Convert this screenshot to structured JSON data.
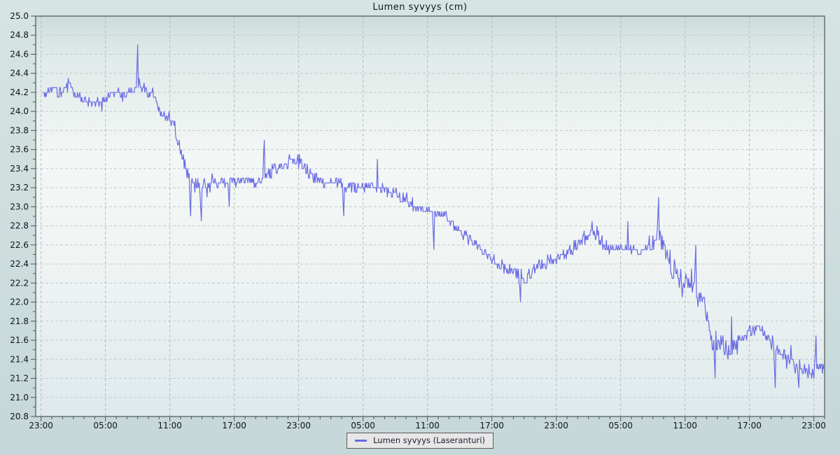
{
  "header": {
    "title": "Lumen syvyys (cm)"
  },
  "legend": {
    "label": "Lumen syvyys (Laseranturi)"
  },
  "colors": {
    "line": "#696be4",
    "grid_horizontal": "#c3cccb",
    "grid_vertical": "#b3bebe",
    "spine": "#4c545a",
    "text": "#101418",
    "title_text": "#101820",
    "legend_background": "#e7e7e7",
    "legend_border": "#5a5a5a",
    "legend_text": "#1c1c30",
    "page_gradient": [
      "#d6e4e2",
      "#c5d7d9"
    ],
    "plot_gradient": [
      [
        0,
        "#cddddb"
      ],
      [
        0.1,
        "#e0eae8"
      ],
      [
        0.35,
        "#f3f7f6"
      ],
      [
        0.6,
        "#f0f4f3"
      ],
      [
        1,
        "#dfe9ec"
      ]
    ]
  },
  "chart_data": {
    "type": "line",
    "title": "Lumen syvyys (cm)",
    "xlabel": "",
    "ylabel": "",
    "grid": true,
    "legend_position": "bottom-center",
    "ylim": [
      20.8,
      25.0
    ],
    "y_tick_step": 0.2,
    "y_minor_step": 0.1,
    "y_tick_labels": [
      "20.8",
      "21.0",
      "21.2",
      "21.4",
      "21.6",
      "21.8",
      "22.0",
      "22.2",
      "22.4",
      "22.6",
      "22.8",
      "23.0",
      "23.2",
      "23.4",
      "23.6",
      "23.8",
      "24.0",
      "24.2",
      "24.4",
      "24.6",
      "24.8",
      "25.0"
    ],
    "x_domain_hours": [
      -0.5,
      73
    ],
    "sample_range_hours": [
      0.2,
      72.9
    ],
    "x_minor_interval_hours": 1,
    "x_major_interval_hours": 6,
    "x_ticks": [
      {
        "t": 0,
        "label": "23:00"
      },
      {
        "t": 6,
        "label": "05:00"
      },
      {
        "t": 12,
        "label": "11:00"
      },
      {
        "t": 18,
        "label": "17:00"
      },
      {
        "t": 24,
        "label": "23:00"
      },
      {
        "t": 30,
        "label": "05:00"
      },
      {
        "t": 36,
        "label": "11:00"
      },
      {
        "t": 42,
        "label": "17:00"
      },
      {
        "t": 48,
        "label": "23:00"
      },
      {
        "t": 54,
        "label": "05:00"
      },
      {
        "t": 60,
        "label": "11:00"
      },
      {
        "t": 66,
        "label": "17:00"
      },
      {
        "t": 72,
        "label": "23:00"
      }
    ],
    "samples_per_hour": 15,
    "noise": {
      "base_amplitude": 0.075,
      "quantize": 0.05,
      "windows": [
        [
          8,
          10.5,
          0.095
        ],
        [
          12.5,
          16,
          0.115
        ],
        [
          20.5,
          24.5,
          0.1
        ],
        [
          33,
          38,
          0.09
        ],
        [
          44,
          46.5,
          0.115
        ],
        [
          49.5,
          53,
          0.1
        ],
        [
          56.5,
          58.5,
          0.125
        ],
        [
          58.5,
          64.5,
          0.175
        ],
        [
          64.5,
          68,
          0.105
        ],
        [
          68,
          73,
          0.095
        ]
      ],
      "spikes": [
        [
          9,
          24.7
        ],
        [
          13.9,
          22.92
        ],
        [
          14.9,
          22.85
        ],
        [
          17.5,
          23.02
        ],
        [
          20.8,
          23.68
        ],
        [
          28.2,
          22.88
        ],
        [
          36.6,
          22.55
        ],
        [
          44.7,
          22.02
        ],
        [
          57.55,
          23.08
        ],
        [
          61,
          22.62
        ],
        [
          62.8,
          21.18
        ],
        [
          68.4,
          21.08
        ],
        [
          70.6,
          21.1
        ],
        [
          72.2,
          21.64
        ]
      ]
    },
    "series": [
      {
        "name": "Lumen syvyys (Laseranturi)",
        "unit": "cm",
        "trend": [
          [
            0.2,
            24.18
          ],
          [
            1,
            24.22
          ],
          [
            2,
            24.22
          ],
          [
            2.6,
            24.28
          ],
          [
            3.2,
            24.15
          ],
          [
            4,
            24.1
          ],
          [
            4.8,
            24.12
          ],
          [
            5.4,
            24.08
          ],
          [
            6.2,
            24.15
          ],
          [
            7,
            24.22
          ],
          [
            7.6,
            24.18
          ],
          [
            8.4,
            24.2
          ],
          [
            9.2,
            24.28
          ],
          [
            10,
            24.22
          ],
          [
            10.6,
            24.12
          ],
          [
            11.2,
            24.0
          ],
          [
            11.8,
            23.94
          ],
          [
            12.4,
            23.86
          ],
          [
            13,
            23.62
          ],
          [
            13.6,
            23.38
          ],
          [
            14.2,
            23.22
          ],
          [
            15,
            23.2
          ],
          [
            16,
            23.25
          ],
          [
            17,
            23.28
          ],
          [
            18,
            23.24
          ],
          [
            19,
            23.28
          ],
          [
            20,
            23.26
          ],
          [
            21,
            23.32
          ],
          [
            21.8,
            23.38
          ],
          [
            22.6,
            23.44
          ],
          [
            23.4,
            23.5
          ],
          [
            24,
            23.47
          ],
          [
            24.6,
            23.4
          ],
          [
            25.4,
            23.3
          ],
          [
            26.4,
            23.24
          ],
          [
            27.4,
            23.26
          ],
          [
            28.4,
            23.2
          ],
          [
            29.4,
            23.18
          ],
          [
            30.4,
            23.22
          ],
          [
            31.4,
            23.2
          ],
          [
            32.4,
            23.16
          ],
          [
            33.4,
            23.1
          ],
          [
            34.4,
            23.04
          ],
          [
            35.4,
            23.0
          ],
          [
            36.4,
            22.96
          ],
          [
            37.4,
            22.9
          ],
          [
            38.4,
            22.82
          ],
          [
            39.4,
            22.72
          ],
          [
            40.4,
            22.62
          ],
          [
            41.4,
            22.52
          ],
          [
            42.4,
            22.42
          ],
          [
            43.4,
            22.36
          ],
          [
            44.4,
            22.32
          ],
          [
            45.2,
            22.2
          ],
          [
            46,
            22.36
          ],
          [
            47,
            22.4
          ],
          [
            48,
            22.44
          ],
          [
            49,
            22.52
          ],
          [
            50,
            22.62
          ],
          [
            50.8,
            22.7
          ],
          [
            51.4,
            22.76
          ],
          [
            52.2,
            22.64
          ],
          [
            53,
            22.56
          ],
          [
            54,
            22.58
          ],
          [
            55,
            22.55
          ],
          [
            56,
            22.52
          ],
          [
            57,
            22.6
          ],
          [
            57.6,
            22.72
          ],
          [
            58.2,
            22.5
          ],
          [
            59,
            22.32
          ],
          [
            59.8,
            22.22
          ],
          [
            60.6,
            22.2
          ],
          [
            61.2,
            22.1
          ],
          [
            61.8,
            21.96
          ],
          [
            62.3,
            21.68
          ],
          [
            63,
            21.52
          ],
          [
            64,
            21.48
          ],
          [
            64.8,
            21.56
          ],
          [
            65.6,
            21.64
          ],
          [
            66.4,
            21.72
          ],
          [
            67.2,
            21.68
          ],
          [
            68,
            21.58
          ],
          [
            68.8,
            21.46
          ],
          [
            69.6,
            21.4
          ],
          [
            70.4,
            21.32
          ],
          [
            71.2,
            21.26
          ],
          [
            72,
            21.28
          ],
          [
            72.5,
            21.34
          ],
          [
            72.9,
            21.3
          ]
        ]
      }
    ]
  }
}
